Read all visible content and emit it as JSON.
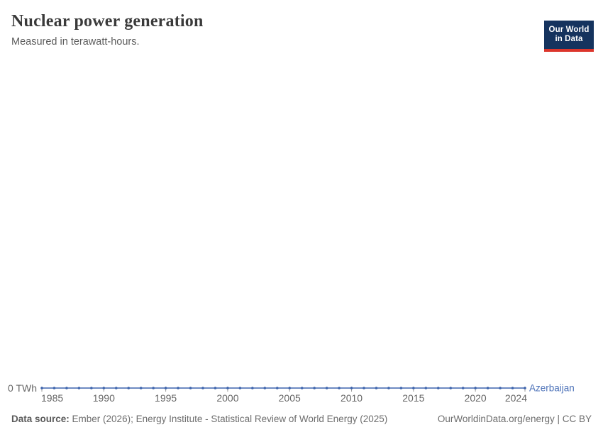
{
  "header": {
    "title": "Nuclear power generation",
    "subtitle": "Measured in terawatt-hours."
  },
  "logo": {
    "line1": "Our World",
    "line2": "in Data",
    "bg_color": "#15335e",
    "bar_color": "#dc352b"
  },
  "footer": {
    "source_label": "Data source:",
    "source_text": " Ember (2026); Energy Institute - Statistical Review of World Energy (2025)",
    "link_text": "OurWorldinData.org/energy | CC BY"
  },
  "chart_data": {
    "type": "line",
    "title": "Nuclear power generation",
    "subtitle": "Measured in terawatt-hours.",
    "ylabel": "terawatt-hours",
    "y_axis_zero_label": "0 TWh",
    "x": [
      1985,
      1986,
      1987,
      1988,
      1989,
      1990,
      1991,
      1992,
      1993,
      1994,
      1995,
      1996,
      1997,
      1998,
      1999,
      2000,
      2001,
      2002,
      2003,
      2004,
      2005,
      2006,
      2007,
      2008,
      2009,
      2010,
      2011,
      2012,
      2013,
      2014,
      2015,
      2016,
      2017,
      2018,
      2019,
      2020,
      2021,
      2022,
      2023,
      2024
    ],
    "series": [
      {
        "name": "Azerbaijan",
        "color": "#3d64ad",
        "values": [
          0,
          0,
          0,
          0,
          0,
          0,
          0,
          0,
          0,
          0,
          0,
          0,
          0,
          0,
          0,
          0,
          0,
          0,
          0,
          0,
          0,
          0,
          0,
          0,
          0,
          0,
          0,
          0,
          0,
          0,
          0,
          0,
          0,
          0,
          0,
          0,
          0,
          0,
          0,
          0
        ]
      }
    ],
    "x_ticks": [
      1985,
      1990,
      1995,
      2000,
      2005,
      2010,
      2015,
      2020,
      2024
    ],
    "xlim": [
      1985,
      2024
    ],
    "ylim": [
      0,
      0
    ],
    "grid": false,
    "legend_position": "end-of-line",
    "axis_color": "#999999",
    "tick_label_color": "#666666",
    "entity_label_color": "#4e73b9"
  }
}
